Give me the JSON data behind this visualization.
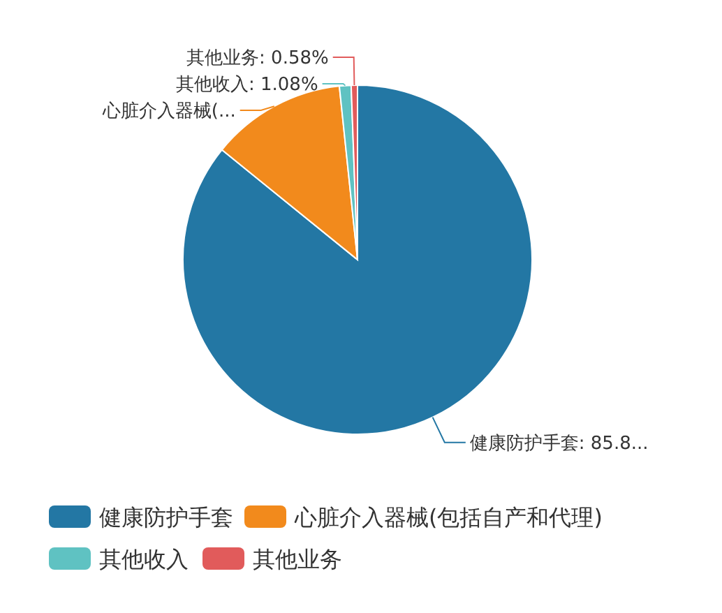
{
  "chart_data": {
    "type": "pie",
    "categories": [
      "健康防护手套",
      "心脏介入器械(包括自产和代理)",
      "其他收入",
      "其他业务"
    ],
    "values": [
      85.84,
      12.5,
      1.08,
      0.58
    ],
    "colors": [
      "#2377a4",
      "#f28a1c",
      "#5fc2c2",
      "#e15b5b"
    ],
    "value_labels": [
      "健康防护手套: 85.8...",
      "心脏介入器械(...",
      "其他收入: 1.08%",
      "其他业务: 0.58%"
    ],
    "legend": "bottom"
  }
}
